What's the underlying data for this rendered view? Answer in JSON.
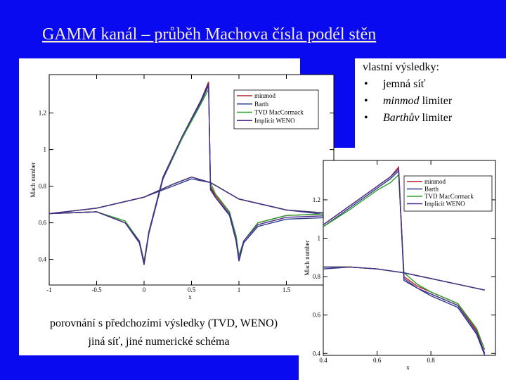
{
  "title": "GAMM kanál – průběh Machova čísla podél stěn",
  "own_results": {
    "heading": "vlastní výsledky:",
    "items": [
      {
        "bullet": "•",
        "text": "jemná síť"
      },
      {
        "bullet": "•",
        "emph": "minmod",
        "text": " limiter"
      },
      {
        "bullet": "•",
        "emph": "Barthův",
        "text": " limiter"
      }
    ]
  },
  "comparison": [
    "porovnání s předchozími výsledky (TVD, WENO)",
    "jiná síť, jiné numerické schéma"
  ],
  "chart_data": [
    {
      "type": "line",
      "xlabel": "x",
      "ylabel": "Mach number",
      "xlim": [
        -1,
        2
      ],
      "ylim": [
        0.26,
        1.41
      ],
      "xticks": [
        -1,
        -0.5,
        0,
        0.5,
        1,
        1.5
      ],
      "yticks": [
        0.4,
        0.6,
        0.8,
        1,
        1.2
      ],
      "legend": "upper right",
      "series": [
        {
          "name": "minmod",
          "color": "#b22222",
          "x": [
            -1,
            -0.5,
            -0.2,
            -0.05,
            0,
            0.05,
            0.2,
            0.4,
            0.6,
            0.68,
            0.7,
            0.75,
            0.9,
            0.97,
            1,
            1.05,
            1.2,
            1.5,
            2,
            null,
            -1,
            -0.5,
            0,
            0.3,
            0.5,
            0.7,
            1,
            1.5,
            2
          ],
          "values": [
            0.65,
            0.66,
            0.6,
            0.5,
            0.38,
            0.55,
            0.85,
            1.07,
            1.27,
            1.37,
            0.8,
            0.75,
            0.66,
            0.52,
            0.4,
            0.5,
            0.6,
            0.64,
            0.65,
            null,
            0.65,
            0.68,
            0.74,
            0.81,
            0.85,
            0.82,
            0.73,
            0.67,
            0.65
          ]
        },
        {
          "name": "Barth",
          "color": "#2b3a8c",
          "x": [
            -1,
            -0.5,
            -0.2,
            -0.05,
            0,
            0.05,
            0.2,
            0.4,
            0.6,
            0.68,
            0.7,
            0.75,
            0.9,
            0.97,
            1,
            1.05,
            1.2,
            1.5,
            2,
            null,
            -1,
            -0.5,
            0,
            0.3,
            0.5,
            0.7,
            1,
            1.5,
            2
          ],
          "values": [
            0.65,
            0.66,
            0.6,
            0.49,
            0.37,
            0.54,
            0.84,
            1.06,
            1.26,
            1.35,
            0.78,
            0.74,
            0.64,
            0.5,
            0.39,
            0.49,
            0.58,
            0.62,
            0.63,
            null,
            0.65,
            0.68,
            0.74,
            0.8,
            0.84,
            0.82,
            0.73,
            0.67,
            0.64
          ]
        },
        {
          "name": "TVD MacCormack",
          "color": "#2ca02c",
          "x": [
            -1,
            -0.5,
            -0.2,
            -0.05,
            0,
            0.05,
            0.2,
            0.4,
            0.6,
            0.68,
            0.7,
            0.75,
            0.9,
            0.97,
            1,
            1.05,
            1.2,
            1.5,
            2,
            null,
            -1,
            -0.5,
            0,
            0.3,
            0.5,
            0.7,
            1,
            1.5,
            2
          ],
          "values": [
            0.65,
            0.66,
            0.61,
            0.5,
            0.39,
            0.55,
            0.85,
            1.06,
            1.25,
            1.33,
            0.82,
            0.76,
            0.66,
            0.53,
            0.42,
            0.5,
            0.6,
            0.64,
            0.65,
            null,
            0.65,
            0.68,
            0.74,
            0.81,
            0.85,
            0.82,
            0.73,
            0.67,
            0.65
          ]
        },
        {
          "name": "Implicit WENO",
          "color": "#4b2c8a",
          "x": [
            -1,
            -0.5,
            -0.2,
            -0.05,
            0,
            0.05,
            0.2,
            0.4,
            0.6,
            0.68,
            0.7,
            0.75,
            0.9,
            0.97,
            1,
            1.05,
            1.2,
            1.5,
            2,
            null,
            -1,
            -0.5,
            0,
            0.3,
            0.5,
            0.7,
            1,
            1.5,
            2
          ],
          "values": [
            0.65,
            0.66,
            0.6,
            0.5,
            0.38,
            0.55,
            0.85,
            1.07,
            1.27,
            1.36,
            0.79,
            0.74,
            0.65,
            0.51,
            0.4,
            0.5,
            0.59,
            0.63,
            0.64,
            null,
            0.65,
            0.68,
            0.74,
            0.81,
            0.85,
            0.82,
            0.73,
            0.67,
            0.65
          ]
        }
      ]
    },
    {
      "type": "line",
      "xlabel": "x",
      "ylabel": "Mach number",
      "xlim": [
        0.4,
        1.04
      ],
      "ylim": [
        0.39,
        1.405
      ],
      "xticks": [
        0.4,
        0.6,
        0.8
      ],
      "yticks": [
        0.4,
        0.6,
        0.8,
        1,
        1.2
      ],
      "legend": "upper right",
      "series": [
        {
          "name": "minmod",
          "color": "#b22222",
          "x": [
            0.4,
            0.5,
            0.6,
            0.65,
            0.68,
            0.7,
            0.75,
            0.8,
            0.9,
            0.97,
            1,
            null,
            0.4,
            0.5,
            0.6,
            0.7,
            0.8,
            0.9,
            1
          ],
          "values": [
            1.07,
            1.17,
            1.27,
            1.32,
            1.37,
            0.8,
            0.75,
            0.72,
            0.66,
            0.52,
            0.4,
            null,
            0.85,
            0.85,
            0.84,
            0.82,
            0.79,
            0.76,
            0.73
          ]
        },
        {
          "name": "Barth",
          "color": "#2b3a8c",
          "x": [
            0.4,
            0.5,
            0.6,
            0.65,
            0.68,
            0.7,
            0.75,
            0.8,
            0.9,
            0.97,
            1,
            null,
            0.4,
            0.5,
            0.6,
            0.7,
            0.8,
            0.9,
            1
          ],
          "values": [
            1.06,
            1.16,
            1.26,
            1.31,
            1.35,
            0.78,
            0.74,
            0.7,
            0.64,
            0.5,
            0.39,
            null,
            0.84,
            0.85,
            0.84,
            0.82,
            0.79,
            0.76,
            0.73
          ]
        },
        {
          "name": "TVD MacCormack",
          "color": "#2ca02c",
          "x": [
            0.4,
            0.5,
            0.6,
            0.65,
            0.68,
            0.7,
            0.75,
            0.8,
            0.9,
            0.97,
            1,
            null,
            0.4,
            0.5,
            0.6,
            0.7,
            0.8,
            0.9,
            1
          ],
          "values": [
            1.06,
            1.15,
            1.25,
            1.29,
            1.33,
            0.82,
            0.76,
            0.72,
            0.66,
            0.53,
            0.42,
            null,
            0.85,
            0.85,
            0.84,
            0.82,
            0.79,
            0.76,
            0.73
          ]
        },
        {
          "name": "Implicit WENO",
          "color": "#4b2c8a",
          "x": [
            0.4,
            0.5,
            0.6,
            0.65,
            0.68,
            0.7,
            0.75,
            0.8,
            0.9,
            0.97,
            1,
            null,
            0.4,
            0.5,
            0.6,
            0.7,
            0.8,
            0.9,
            1
          ],
          "values": [
            1.07,
            1.17,
            1.27,
            1.32,
            1.36,
            0.79,
            0.74,
            0.71,
            0.65,
            0.51,
            0.4,
            null,
            0.85,
            0.85,
            0.84,
            0.82,
            0.79,
            0.76,
            0.73
          ]
        }
      ]
    }
  ]
}
